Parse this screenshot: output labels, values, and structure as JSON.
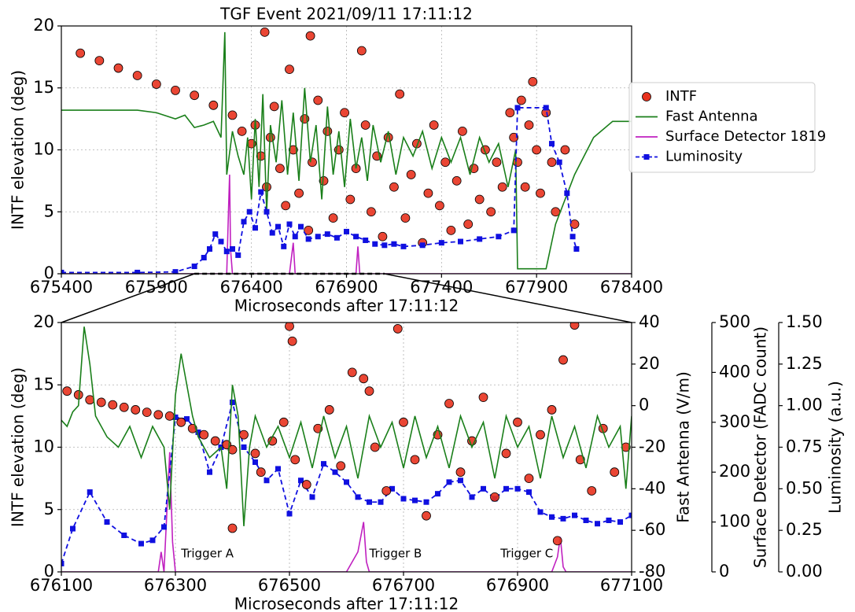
{
  "chart_data": [
    {
      "type": "combo",
      "title": "TGF Event 2021/09/11 17:11:12",
      "xlabel": "Microseconds after 17:11:12",
      "ylabel": "INTF elevation (deg)",
      "ylabel_color": "#e8321e",
      "xlim": [
        675400,
        678400
      ],
      "xticks": [
        675400,
        675900,
        676400,
        676900,
        677400,
        677900,
        678400
      ],
      "ylim": [
        0,
        20
      ],
      "yticks": [
        0,
        5,
        10,
        15,
        20
      ],
      "grid": true,
      "legend": "right",
      "series": [
        {
          "name": "INTF",
          "type": "scatter",
          "color": "#e8321e",
          "x": [
            675500,
            675600,
            675700,
            675800,
            675900,
            676000,
            676100,
            676200,
            676300,
            676350,
            676400,
            676420,
            676450,
            676470,
            676480,
            676500,
            676520,
            676550,
            676580,
            676600,
            676620,
            676650,
            676680,
            676700,
            676710,
            676720,
            676750,
            676780,
            676800,
            676830,
            676860,
            676890,
            676920,
            676950,
            676980,
            677000,
            677030,
            677060,
            677090,
            677120,
            677150,
            677180,
            677210,
            677240,
            677270,
            677300,
            677330,
            677360,
            677390,
            677420,
            677450,
            677480,
            677510,
            677540,
            677570,
            677600,
            677630,
            677660,
            677690,
            677720,
            677760,
            677780,
            677800,
            677820,
            677840,
            677860,
            677880,
            677900,
            677920,
            677950,
            677980,
            678000,
            678050,
            678100
          ],
          "values": [
            17.8,
            17.2,
            16.6,
            16.0,
            15.3,
            14.8,
            14.4,
            13.6,
            12.8,
            11.5,
            10.5,
            12.0,
            9.5,
            19.5,
            7.0,
            11.0,
            13.5,
            8.5,
            5.5,
            16.5,
            10.0,
            6.5,
            12.5,
            3.5,
            19.2,
            9.0,
            14.0,
            7.5,
            11.5,
            4.5,
            10.0,
            13.0,
            6.0,
            8.5,
            18.0,
            12.0,
            5.0,
            9.5,
            3.0,
            11.0,
            7.0,
            14.5,
            4.5,
            8.0,
            10.5,
            2.5,
            6.5,
            12.0,
            5.5,
            9.0,
            3.5,
            7.5,
            11.5,
            4.0,
            8.5,
            6.0,
            10.0,
            5.0,
            9.0,
            7.0,
            13.0,
            11.0,
            9.0,
            14.0,
            7.0,
            12.0,
            15.5,
            10.0,
            6.5,
            13.0,
            9.0,
            5.0,
            10.0,
            4.0
          ]
        },
        {
          "name": "Fast Antenna",
          "type": "line",
          "color": "#1a7f1a",
          "x": [
            675400,
            675800,
            675900,
            676000,
            676050,
            676100,
            676150,
            676200,
            676240,
            676260,
            676270,
            676300,
            676330,
            676360,
            676380,
            676400,
            676420,
            676440,
            676460,
            676480,
            676500,
            676530,
            676560,
            676590,
            676620,
            676650,
            676680,
            676710,
            676740,
            676770,
            676800,
            676830,
            676860,
            676890,
            676920,
            676950,
            676980,
            677010,
            677040,
            677080,
            677120,
            677160,
            677200,
            677250,
            677300,
            677350,
            677400,
            677450,
            677500,
            677550,
            677600,
            677650,
            677700,
            677750,
            677790,
            677800,
            677950,
            678000,
            678100,
            678200,
            678300,
            678400
          ],
          "values": [
            13.2,
            13.2,
            13.0,
            12.5,
            12.8,
            11.8,
            12.0,
            12.3,
            11.0,
            19.5,
            8.0,
            11.5,
            9.5,
            8.0,
            11.0,
            6.0,
            12.5,
            7.0,
            14.5,
            5.0,
            12.0,
            9.0,
            14.0,
            8.0,
            13.0,
            7.5,
            15.0,
            9.0,
            12.0,
            6.0,
            13.5,
            8.0,
            11.5,
            7.0,
            12.5,
            8.5,
            11.0,
            7.5,
            12.0,
            9.0,
            11.5,
            8.0,
            11.0,
            9.5,
            11.5,
            8.5,
            11.0,
            9.0,
            11.0,
            8.0,
            11.0,
            9.0,
            10.5,
            7.0,
            10.0,
            0.4,
            0.4,
            4.0,
            8.0,
            11.0,
            12.3,
            12.3
          ]
        },
        {
          "name": "Surface Detector 1819",
          "type": "line",
          "color": "#c020c0",
          "x": [
            675400,
            676270,
            676280,
            676285,
            676290,
            676300,
            676600,
            676620,
            676630,
            676950,
            676960,
            676970,
            678400
          ],
          "values": [
            0,
            0,
            5.5,
            8.0,
            2.0,
            0,
            0,
            2.5,
            0,
            0,
            2.2,
            0,
            0
          ]
        },
        {
          "name": "Luminosity",
          "type": "line",
          "color": "#1010e0",
          "dash": true,
          "marker": "square",
          "x": [
            675400,
            675800,
            676000,
            676100,
            676150,
            676180,
            676210,
            676240,
            676270,
            676300,
            676330,
            676360,
            676390,
            676420,
            676450,
            676480,
            676510,
            676540,
            676570,
            676600,
            676630,
            676660,
            676700,
            676750,
            676800,
            676850,
            676900,
            676950,
            677000,
            677050,
            677100,
            677150,
            677200,
            677300,
            677400,
            677500,
            677600,
            677700,
            677780,
            677800,
            677950,
            677980,
            678020,
            678060,
            678090,
            678110
          ],
          "values": [
            0.1,
            0.1,
            0.15,
            0.6,
            1.3,
            2.0,
            3.2,
            2.6,
            1.8,
            2.0,
            1.5,
            4.2,
            5.0,
            3.7,
            6.6,
            5.0,
            3.3,
            3.8,
            2.2,
            4.0,
            3.0,
            3.8,
            2.8,
            3.0,
            3.2,
            2.9,
            3.4,
            3.0,
            2.7,
            2.4,
            2.3,
            2.4,
            2.2,
            2.3,
            2.5,
            2.6,
            2.8,
            3.0,
            3.5,
            13.4,
            13.4,
            10.5,
            9.0,
            6.5,
            3.0,
            2.0
          ]
        }
      ]
    },
    {
      "type": "combo",
      "xlabel": "Microseconds after 17:11:12",
      "ylabel": "INTF elevation (deg)",
      "ylabel_color": "#e8321e",
      "y2label": "Fast Antenna (V/m)",
      "y2label_color": "#1a7f1a",
      "y3label": "Surface Detector (FADC count)",
      "y3label_color": "#c020c0",
      "y4label": "Luminosity (a.u.)",
      "y4label_color": "#1010e0",
      "xlim": [
        676100,
        677100
      ],
      "xticks": [
        676100,
        676300,
        676500,
        676700,
        676900,
        677100
      ],
      "ylim": [
        0,
        20
      ],
      "yticks": [
        0,
        5,
        10,
        15,
        20
      ],
      "y2lim": [
        -80,
        40
      ],
      "y2ticks": [
        -80,
        -60,
        -40,
        -20,
        0,
        20,
        40
      ],
      "y3lim": [
        0,
        500
      ],
      "y3ticks": [
        0,
        100,
        200,
        300,
        400,
        500
      ],
      "y4lim": [
        0,
        1.5
      ],
      "y4ticks": [
        {
          "value": 0,
          "label": "0.00"
        },
        {
          "value": 0.25,
          "label": "0.25"
        },
        {
          "value": 0.5,
          "label": "0.50"
        },
        {
          "value": 0.75,
          "label": "0.75"
        },
        {
          "value": 1,
          "label": "1.00"
        },
        {
          "value": 1.25,
          "label": "1.25"
        },
        {
          "value": 1.5,
          "label": "1.50"
        }
      ],
      "grid": true,
      "series": [
        {
          "type": "line",
          "axis": "y3",
          "color": "#c020c0",
          "x": [
            676100,
            676270,
            676275,
            676280,
            676285,
            676290,
            676295,
            676300,
            676600,
            676620,
            676630,
            676635,
            676640,
            676960,
            676970,
            676975,
            676980,
            676985,
            677100
          ],
          "values": [
            0,
            0,
            40,
            0,
            120,
            240,
            60,
            0,
            0,
            40,
            100,
            20,
            0,
            0,
            30,
            70,
            10,
            0,
            0
          ]
        },
        {
          "type": "line",
          "axis": "y4",
          "color": "#1010e0",
          "dash": true,
          "marker": "square",
          "x": [
            676100,
            676120,
            676150,
            676180,
            676210,
            676240,
            676260,
            676280,
            676300,
            676320,
            676340,
            676360,
            676380,
            676400,
            676420,
            676440,
            676460,
            676480,
            676500,
            676520,
            676540,
            676560,
            676580,
            676600,
            676620,
            676640,
            676660,
            676680,
            676700,
            676720,
            676740,
            676760,
            676780,
            676800,
            676820,
            676840,
            676860,
            676880,
            676900,
            676920,
            676940,
            676960,
            676980,
            677000,
            677020,
            677040,
            677060,
            677080,
            677100
          ],
          "values": [
            0.05,
            0.26,
            0.48,
            0.3,
            0.22,
            0.17,
            0.19,
            0.27,
            0.93,
            0.92,
            0.84,
            0.6,
            0.75,
            1.02,
            0.75,
            0.66,
            0.55,
            0.62,
            0.35,
            0.55,
            0.45,
            0.65,
            0.6,
            0.54,
            0.45,
            0.42,
            0.42,
            0.5,
            0.44,
            0.43,
            0.42,
            0.47,
            0.54,
            0.55,
            0.45,
            0.5,
            0.44,
            0.5,
            0.5,
            0.48,
            0.36,
            0.33,
            0.32,
            0.34,
            0.31,
            0.29,
            0.31,
            0.3,
            0.34
          ]
        },
        {
          "type": "scatter",
          "color": "#e8321e",
          "x": [
            676110,
            676130,
            676150,
            676170,
            676190,
            676210,
            676230,
            676250,
            676270,
            676290,
            676310,
            676330,
            676350,
            676370,
            676390,
            676400,
            676400,
            676420,
            676440,
            676450,
            676470,
            676490,
            676500,
            676505,
            676510,
            676530,
            676550,
            676570,
            676590,
            676610,
            676630,
            676640,
            676650,
            676670,
            676690,
            676700,
            676720,
            676740,
            676760,
            676780,
            676800,
            676820,
            676840,
            676860,
            676880,
            676900,
            676920,
            676940,
            676960,
            676970,
            676980,
            677000,
            677010,
            677030,
            677050,
            677070,
            677090
          ],
          "values": [
            14.5,
            14.2,
            13.8,
            13.6,
            13.4,
            13.2,
            13.0,
            12.8,
            12.6,
            12.5,
            12.0,
            11.5,
            11.0,
            10.5,
            10.2,
            9.8,
            3.5,
            11.0,
            9.5,
            8.0,
            10.5,
            12.0,
            19.7,
            18.5,
            9.0,
            7.0,
            11.5,
            13.0,
            8.5,
            16.0,
            15.5,
            14.5,
            10.0,
            6.5,
            19.5,
            12.0,
            9.0,
            4.5,
            11.0,
            13.5,
            8.0,
            10.5,
            14.0,
            6.0,
            9.5,
            12.0,
            7.5,
            11.0,
            13.0,
            2.5,
            17.0,
            19.8,
            9.0,
            6.5,
            11.5,
            8.0,
            10.0
          ]
        },
        {
          "type": "line",
          "axis": "y2",
          "color": "#1a7f1a",
          "x": [
            676100,
            676110,
            676120,
            676130,
            676140,
            676150,
            676160,
            676180,
            676200,
            676220,
            676240,
            676260,
            676280,
            676290,
            676300,
            676310,
            676320,
            676330,
            676340,
            676360,
            676380,
            676390,
            676400,
            676410,
            676420,
            676430,
            676440,
            676460,
            676480,
            676500,
            676520,
            676540,
            676560,
            676580,
            676600,
            676620,
            676640,
            676660,
            676680,
            676700,
            676720,
            676740,
            676760,
            676780,
            676800,
            676820,
            676840,
            676860,
            676880,
            676900,
            676920,
            676940,
            676960,
            676980,
            677000,
            677020,
            677040,
            677060,
            677080,
            677090,
            677100
          ],
          "values": [
            -7,
            -10,
            -3,
            0,
            38,
            20,
            -5,
            -15,
            -20,
            -10,
            -25,
            -10,
            -20,
            -50,
            5,
            25,
            10,
            -5,
            -15,
            -25,
            -20,
            -40,
            10,
            -5,
            -58,
            -20,
            -5,
            -20,
            -10,
            -25,
            -8,
            -30,
            -5,
            -25,
            -10,
            -35,
            -5,
            -20,
            -8,
            -30,
            -5,
            -25,
            -10,
            -30,
            -5,
            -20,
            -8,
            -35,
            -5,
            -20,
            -10,
            -35,
            -5,
            -25,
            -10,
            -30,
            -5,
            -20,
            -10,
            -40,
            -5
          ]
        }
      ],
      "annotations": [
        {
          "text": "Trigger A",
          "x": 676310,
          "y": 0.7,
          "color": "#d0102a"
        },
        {
          "text": "Trigger B",
          "x": 676640,
          "y": 0.7,
          "color": "#1010c0"
        },
        {
          "text": "Trigger C",
          "x": 676870,
          "y": 0.7,
          "color": "#1a8f1a"
        }
      ]
    }
  ]
}
